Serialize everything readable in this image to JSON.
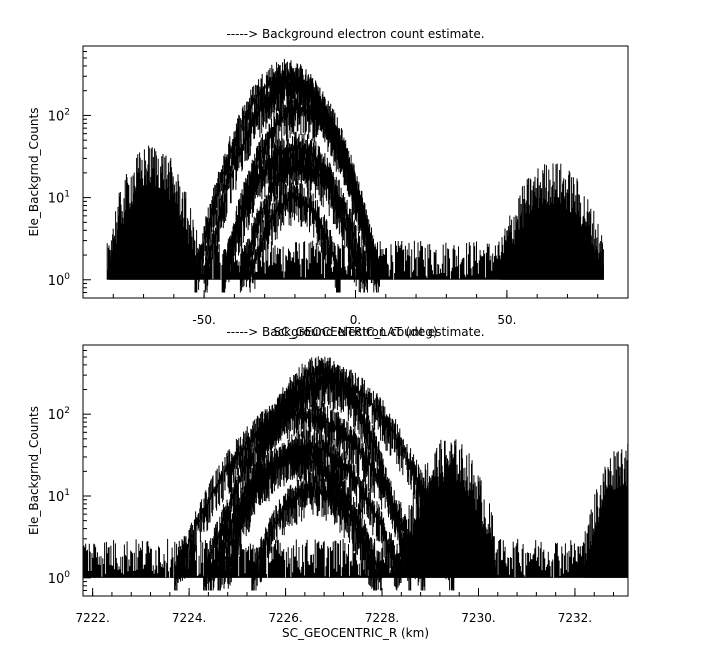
{
  "chart_data": [
    {
      "type": "line",
      "title": "-----> Background electron count estimate.",
      "xlabel": "SC_GEOCENTRIC_LAT (deg)",
      "ylabel": "Ele_Backgrnd_Counts",
      "y_scale": "log",
      "xlim": [
        -90,
        90
      ],
      "ylim": [
        0.6,
        700
      ],
      "x_tick_labels": [
        {
          "value": -50,
          "label": "-50."
        },
        {
          "value": 0,
          "label": "0."
        },
        {
          "value": 50,
          "label": "50."
        }
      ],
      "y_tick_labels": [
        {
          "value": 1,
          "base": "10",
          "exp": "0"
        },
        {
          "value": 10,
          "base": "10",
          "exp": "1"
        },
        {
          "value": 100,
          "base": "10",
          "exp": "2"
        }
      ],
      "data_extent_x": [
        -81,
        82
      ],
      "noise_floor": [
        1,
        3
      ],
      "series": [
        {
          "type": "arc",
          "center": -23,
          "half_width": 30,
          "peak": 300
        },
        {
          "type": "arc",
          "center": -21,
          "half_width": 29,
          "peak": 250
        },
        {
          "type": "arc",
          "center": -18,
          "half_width": 26,
          "peak": 120
        },
        {
          "type": "arc",
          "center": -20,
          "half_width": 24,
          "peak": 40
        },
        {
          "type": "arc",
          "center": -18,
          "half_width": 20,
          "peak": 25
        },
        {
          "type": "arc",
          "center": -20,
          "half_width": 15,
          "peak": 10
        },
        {
          "type": "bump",
          "center": -67,
          "half_width": 15,
          "peak": 13
        },
        {
          "type": "bump",
          "center": 65,
          "half_width": 17,
          "peak": 8
        }
      ],
      "grid": false
    },
    {
      "type": "line",
      "title": "-----> Background electron count estimate.",
      "xlabel": "SC_GEOCENTRIC_R (km)",
      "ylabel": "Ele_Backgrnd_Counts",
      "y_scale": "log",
      "xlim": [
        7221.8,
        7233.1
      ],
      "ylim": [
        0.6,
        700
      ],
      "x_tick_labels": [
        {
          "value": 7222,
          "label": "7222."
        },
        {
          "value": 7224,
          "label": "7224."
        },
        {
          "value": 7226,
          "label": "7226."
        },
        {
          "value": 7228,
          "label": "7228."
        },
        {
          "value": 7230,
          "label": "7230."
        },
        {
          "value": 7232,
          "label": "7232."
        }
      ],
      "y_tick_labels": [
        {
          "value": 1,
          "base": "10",
          "exp": "0"
        },
        {
          "value": 10,
          "base": "10",
          "exp": "1"
        },
        {
          "value": 100,
          "base": "10",
          "exp": "2"
        }
      ],
      "data_extent_x": [
        7221.8,
        7233.1
      ],
      "noise_floor": [
        1,
        3
      ],
      "series": [
        {
          "type": "arc",
          "center": 7226.7,
          "half_width": 1.9,
          "peak": 320
        },
        {
          "type": "arc",
          "center": 7226.9,
          "half_width": 2.6,
          "peak": 250
        },
        {
          "type": "arc",
          "center": 7226.3,
          "half_width": 2.6,
          "peak": 100
        },
        {
          "type": "arc",
          "center": 7226.5,
          "half_width": 1.9,
          "peak": 40
        },
        {
          "type": "arc",
          "center": 7226.2,
          "half_width": 1.8,
          "peak": 30
        },
        {
          "type": "arc",
          "center": 7226.6,
          "half_width": 1.3,
          "peak": 12
        },
        {
          "type": "bump",
          "center": 7229.4,
          "half_width": 1.0,
          "peak": 15
        },
        {
          "type": "bump",
          "center": 7233.0,
          "half_width": 0.8,
          "peak": 13
        }
      ],
      "grid": false
    }
  ]
}
